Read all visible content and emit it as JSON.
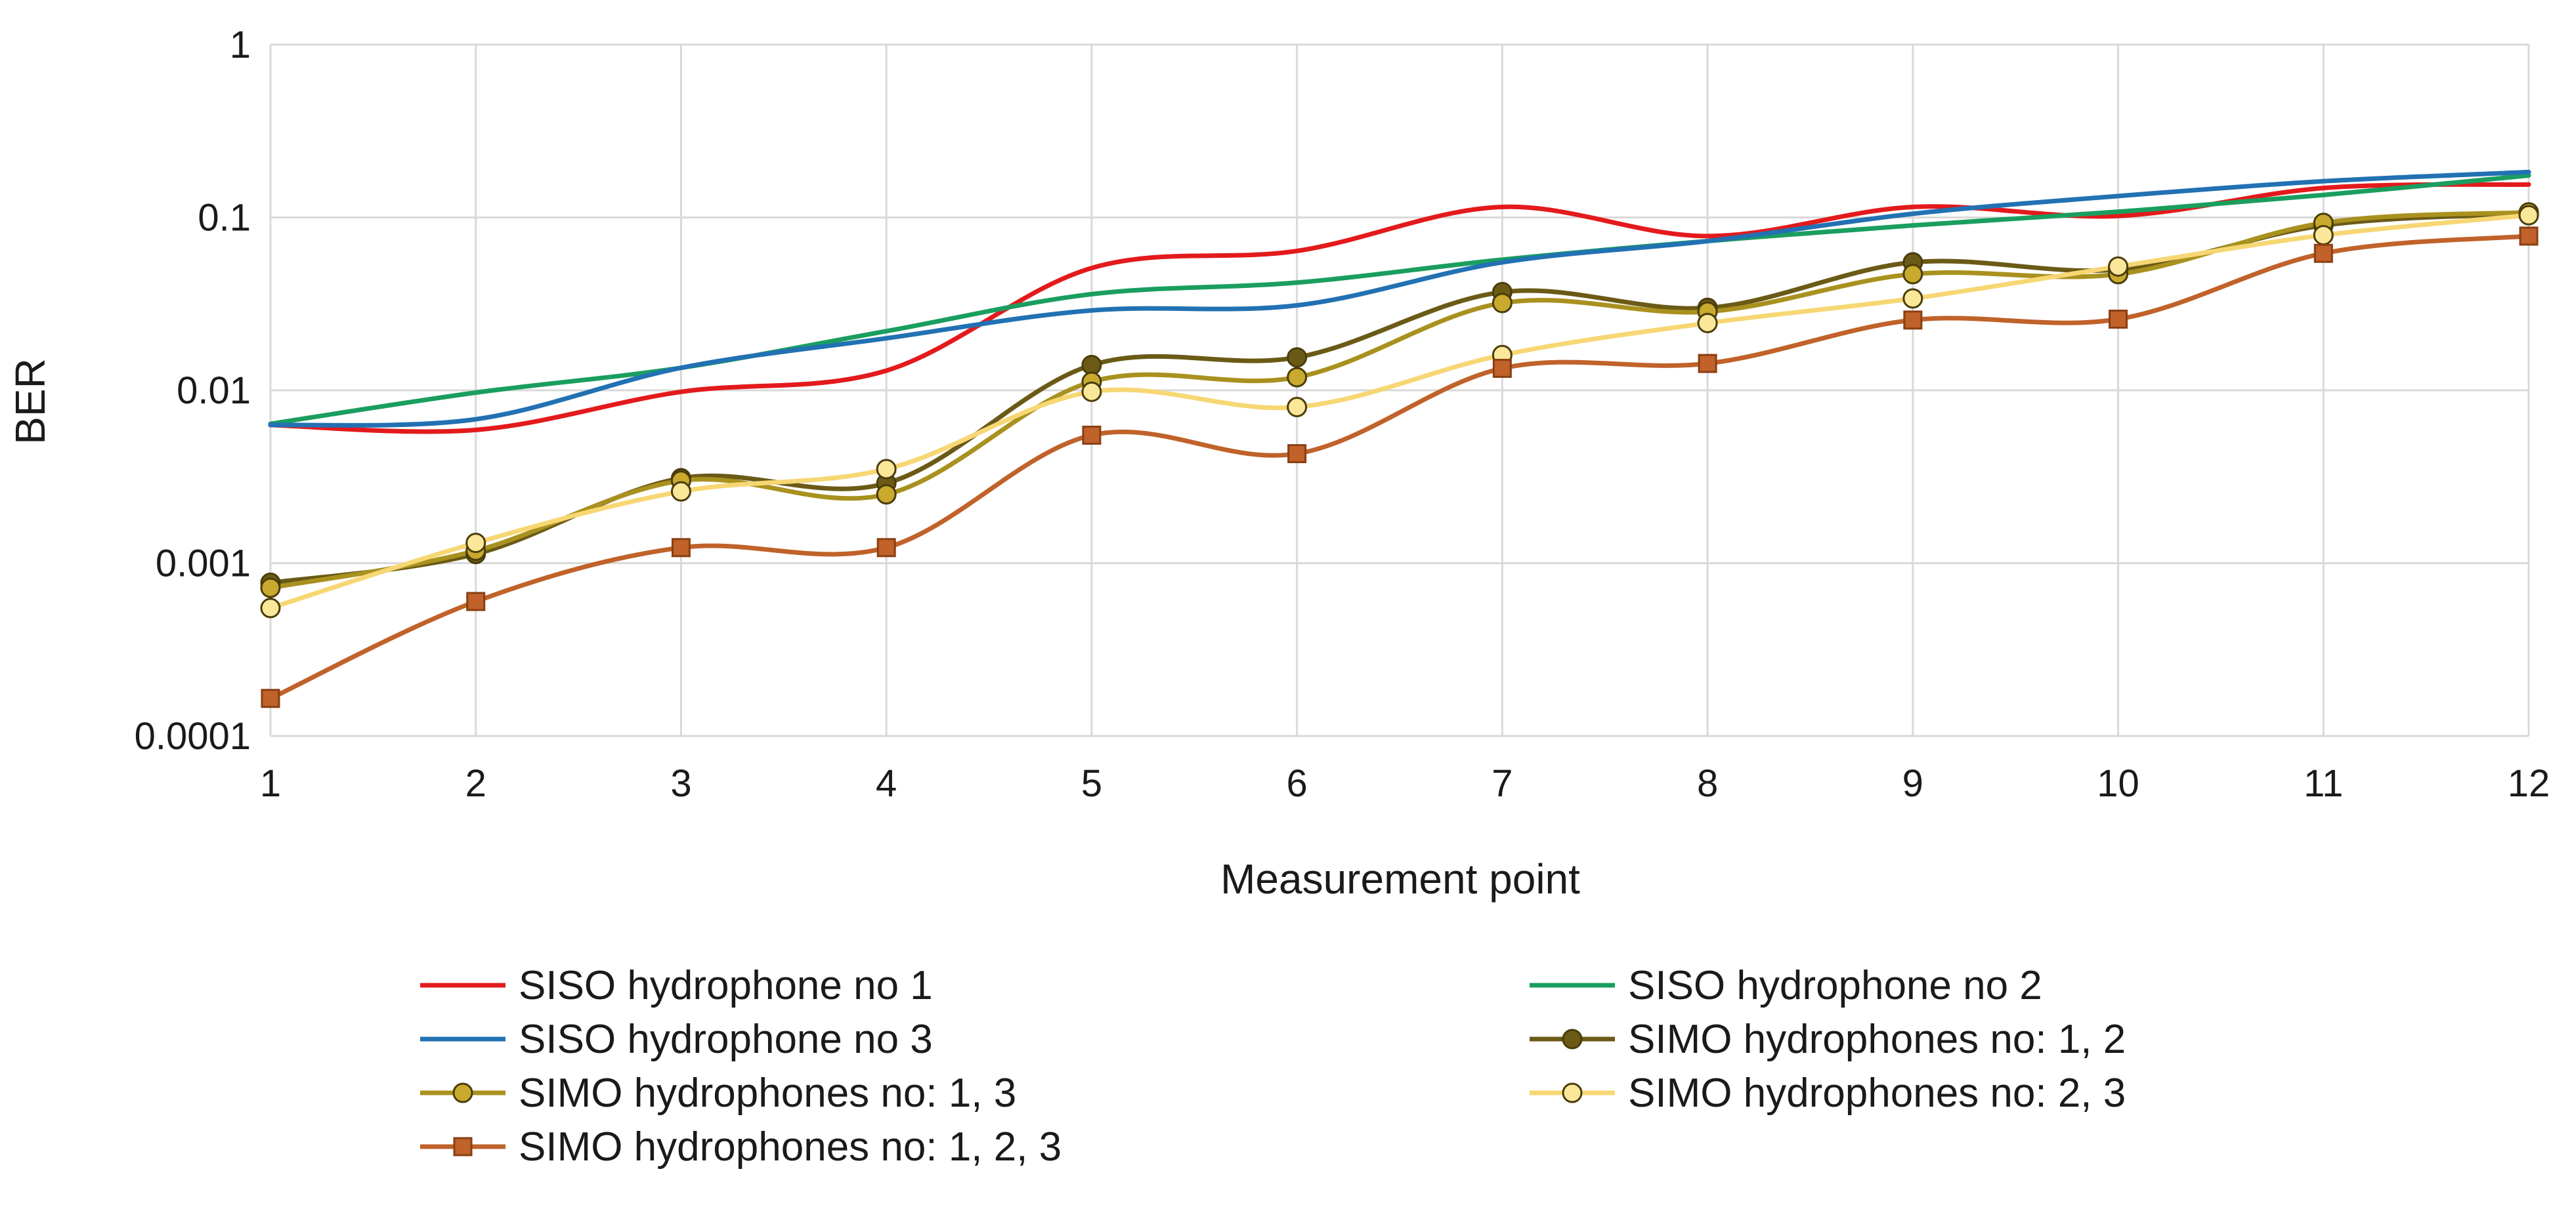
{
  "chart_data": {
    "type": "line",
    "title": "",
    "xlabel": "Measurement point",
    "ylabel": "BER",
    "yscale": "log",
    "ylim": [
      0.0001,
      1
    ],
    "xlim": [
      1,
      12
    ],
    "grid": true,
    "legend_position": "bottom",
    "x": [
      1,
      2,
      3,
      4,
      5,
      6,
      7,
      8,
      9,
      10,
      11,
      12
    ],
    "x_tick_labels": [
      "1",
      "2",
      "3",
      "4",
      "5",
      "6",
      "7",
      "8",
      "9",
      "10",
      "11",
      "12"
    ],
    "y_tick_labels": [
      "1",
      "0.1",
      "0.01",
      "0.001",
      "0.0001"
    ],
    "series": [
      {
        "name": "SISO hydrophone no 1",
        "color": "#e31a1c",
        "marker": "none",
        "values": [
          0.0063,
          0.0059,
          0.0098,
          0.013,
          0.051,
          0.064,
          0.115,
          0.078,
          0.115,
          0.102,
          0.148,
          0.155
        ]
      },
      {
        "name": "SISO hydrophone no 2",
        "color": "#1a9e5f",
        "marker": "none",
        "values": [
          0.0064,
          0.0097,
          0.0135,
          0.022,
          0.036,
          0.042,
          0.057,
          0.073,
          0.09,
          0.108,
          0.135,
          0.175
        ]
      },
      {
        "name": "SISO hydrophone no 3",
        "color": "#2271b3",
        "marker": "none",
        "values": [
          0.0063,
          0.0068,
          0.0135,
          0.02,
          0.029,
          0.031,
          0.055,
          0.073,
          0.105,
          0.133,
          0.162,
          0.183
        ]
      },
      {
        "name": "SIMO hydrophones no: 1, 2",
        "color": "#6b5a16",
        "marker": "dot-dark",
        "values": [
          0.00077,
          0.00113,
          0.0031,
          0.0029,
          0.014,
          0.0155,
          0.037,
          0.03,
          0.055,
          0.05,
          0.09,
          0.105
        ]
      },
      {
        "name": "SIMO hydrophones no: 1, 3",
        "color": "#a9911f",
        "marker": "dot-olive",
        "values": [
          0.00072,
          0.00118,
          0.003,
          0.0025,
          0.0112,
          0.0119,
          0.032,
          0.0285,
          0.047,
          0.047,
          0.093,
          0.107
        ]
      },
      {
        "name": "SIMO hydrophones no: 2, 3",
        "color": "#f7d774",
        "marker": "dot-light",
        "values": [
          0.00055,
          0.00131,
          0.0026,
          0.0035,
          0.0098,
          0.008,
          0.016,
          0.0245,
          0.034,
          0.052,
          0.079,
          0.103
        ]
      },
      {
        "name": "SIMO hydrophones no: 1, 2, 3",
        "color": "#c0622a",
        "marker": "square",
        "values": [
          0.000165,
          0.0006,
          0.00123,
          0.00123,
          0.0055,
          0.0043,
          0.0134,
          0.0143,
          0.0255,
          0.0258,
          0.062,
          0.078
        ]
      }
    ]
  }
}
